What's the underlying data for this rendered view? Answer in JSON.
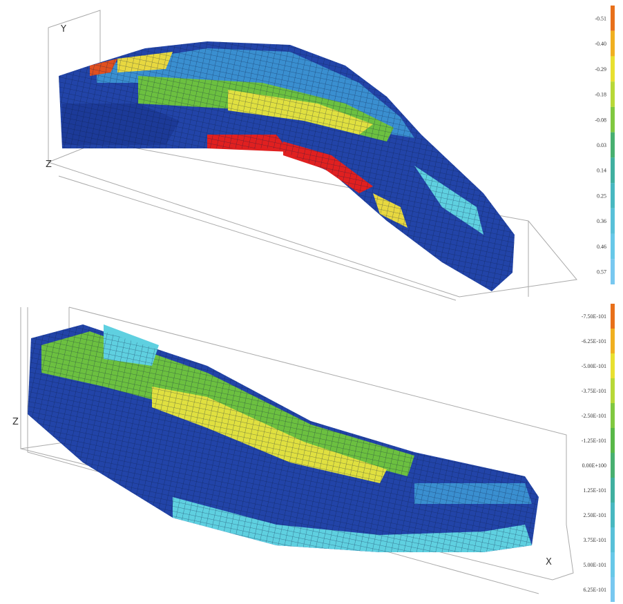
{
  "panels": [
    {
      "axis_labels": [
        "Y",
        "Z"
      ],
      "legend": [
        "-0.51",
        "-0.40",
        "-0.29",
        "-0.18",
        "-0.08",
        "0.03",
        "0.14",
        "0.25",
        "0.36",
        "0.46",
        "0.57"
      ]
    },
    {
      "axis_labels": [
        "Z",
        "X"
      ],
      "legend": [
        "-7.50E-101",
        "-6.25E-101",
        "-5.00E-101",
        "-3.75E-101",
        "-2.50E-101",
        "-1.25E-101",
        "0.00E+100",
        "1.25E-101",
        "2.50E-101",
        "3.75E-101",
        "5.00E-101",
        "6.25E-101"
      ]
    }
  ]
}
